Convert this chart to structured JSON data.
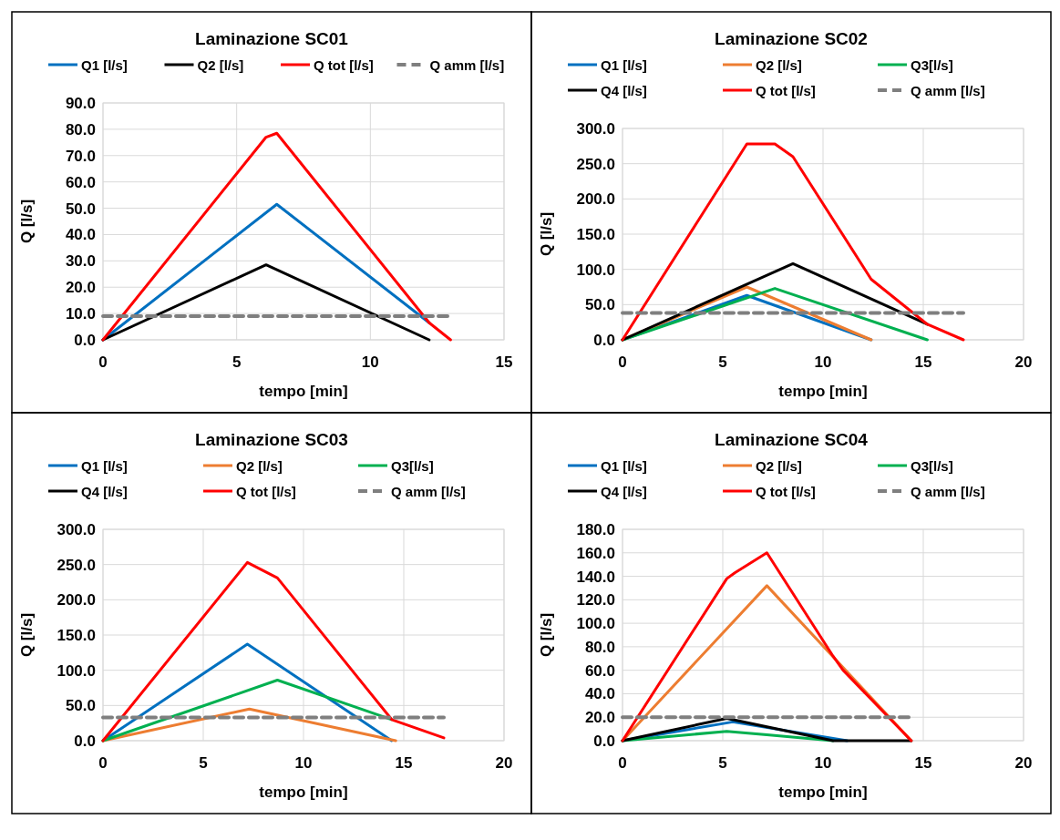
{
  "chart_data": [
    {
      "type": "line",
      "title": "Laminazione SC01",
      "xlabel": "tempo [min]",
      "ylabel": "Q [l/s]",
      "xlim": [
        0,
        15
      ],
      "xticks": [
        0,
        5,
        10,
        15
      ],
      "ylim": [
        0,
        90
      ],
      "yticks": [
        {
          "value": 0,
          "label": "0.0"
        },
        {
          "value": 10,
          "label": "10.0"
        },
        {
          "value": 20,
          "label": "20.0"
        },
        {
          "value": 30,
          "label": "30.0"
        },
        {
          "value": 40,
          "label": "40.0"
        },
        {
          "value": 50,
          "label": "50.0"
        },
        {
          "value": 60,
          "label": "60.0"
        },
        {
          "value": 70,
          "label": "70.0"
        },
        {
          "value": 80,
          "label": "80.0"
        },
        {
          "value": 90,
          "label": "90.0"
        }
      ],
      "grid": true,
      "legend": "top",
      "series": [
        {
          "name": "Q1 [l/s]",
          "color": "#0070c0",
          "x": [
            0,
            6.5,
            12.2
          ],
          "values": [
            0,
            51.5,
            6.5
          ]
        },
        {
          "name": "Q2 [l/s]",
          "color": "#000000",
          "x": [
            0,
            6.1,
            12.2
          ],
          "values": [
            0,
            28.5,
            0
          ]
        },
        {
          "name": "Q tot [l/s]",
          "color": "#ff0000",
          "x": [
            0,
            6.1,
            6.5,
            12.2,
            13
          ],
          "values": [
            0,
            77,
            78.5,
            6.5,
            0
          ]
        },
        {
          "name": "Q amm [l/s]",
          "color": "#7f7f7f",
          "line_style": "dashed",
          "x": [
            0,
            13
          ],
          "values": [
            9,
            9
          ]
        }
      ]
    },
    {
      "type": "line",
      "title": "Laminazione SC02",
      "xlabel": "tempo [min]",
      "ylabel": "Q [l/s]",
      "xlim": [
        0,
        20
      ],
      "xticks": [
        0,
        5,
        10,
        15,
        20
      ],
      "ylim": [
        0,
        300
      ],
      "yticks": [
        {
          "value": 0,
          "label": "0.0"
        },
        {
          "value": 50,
          "label": "50.0"
        },
        {
          "value": 100,
          "label": "100.0"
        },
        {
          "value": 150,
          "label": "150.0"
        },
        {
          "value": 200,
          "label": "200.0"
        },
        {
          "value": 250,
          "label": "250.0"
        },
        {
          "value": 300,
          "label": "300.0"
        }
      ],
      "grid": true,
      "legend": "top",
      "series": [
        {
          "name": "Q1 [l/s]",
          "color": "#0070c0",
          "x": [
            0,
            6.2,
            12.4
          ],
          "values": [
            0,
            63,
            0
          ]
        },
        {
          "name": "Q2 [l/s]",
          "color": "#ed7d31",
          "x": [
            0,
            6.2,
            12.4
          ],
          "values": [
            0,
            75,
            0
          ]
        },
        {
          "name": "Q3[l/s]",
          "color": "#00b050",
          "x": [
            0,
            7.6,
            15.2
          ],
          "values": [
            0,
            73,
            0
          ]
        },
        {
          "name": "Q4 [l/s]",
          "color": "#000000",
          "x": [
            0,
            8.5,
            15.2
          ],
          "values": [
            0,
            108,
            22
          ]
        },
        {
          "name": "Q tot [l/s]",
          "color": "#ff0000",
          "x": [
            0,
            6.2,
            7.6,
            8.5,
            12.4,
            15.2,
            17
          ],
          "values": [
            0,
            278,
            278,
            260,
            86,
            22,
            0
          ]
        },
        {
          "name": "Q amm [l/s]",
          "color": "#7f7f7f",
          "line_style": "dashed",
          "x": [
            0,
            17
          ],
          "values": [
            38,
            38
          ]
        }
      ]
    },
    {
      "type": "line",
      "title": "Laminazione SC03",
      "xlabel": "tempo [min]",
      "ylabel": "Q [l/s]",
      "xlim": [
        0,
        20
      ],
      "xticks": [
        0,
        5,
        10,
        15,
        20
      ],
      "ylim": [
        0,
        300
      ],
      "yticks": [
        {
          "value": 0,
          "label": "0.0"
        },
        {
          "value": 50,
          "label": "50.0"
        },
        {
          "value": 100,
          "label": "100.0"
        },
        {
          "value": 150,
          "label": "150.0"
        },
        {
          "value": 200,
          "label": "200.0"
        },
        {
          "value": 250,
          "label": "250.0"
        },
        {
          "value": 300,
          "label": "300.0"
        }
      ],
      "grid": true,
      "legend": "top",
      "series": [
        {
          "name": "Q1 [l/s]",
          "color": "#0070c0",
          "x": [
            0,
            7.2,
            14.4
          ],
          "values": [
            0,
            137,
            0
          ]
        },
        {
          "name": "Q2 [l/s]",
          "color": "#ed7d31",
          "x": [
            0,
            7.3,
            14.6
          ],
          "values": [
            0,
            45,
            0
          ]
        },
        {
          "name": "Q3[l/s]",
          "color": "#00b050",
          "x": [
            0,
            8.7,
            14.4
          ],
          "values": [
            0,
            86,
            30
          ]
        },
        {
          "name": "Q4 [l/s]",
          "color": "#000000"
        },
        {
          "name": "Q tot [l/s]",
          "color": "#ff0000",
          "x": [
            0,
            7.2,
            8.7,
            14.4,
            17
          ],
          "values": [
            0,
            253,
            231,
            30,
            4
          ]
        },
        {
          "name": "Q amm [l/s]",
          "color": "#7f7f7f",
          "line_style": "dashed",
          "x": [
            0,
            17
          ],
          "values": [
            33,
            33
          ]
        }
      ]
    },
    {
      "type": "line",
      "title": "Laminazione SC04",
      "xlabel": "tempo [min]",
      "ylabel": "Q [l/s]",
      "xlim": [
        0,
        20
      ],
      "xticks": [
        0,
        5,
        10,
        15,
        20
      ],
      "ylim": [
        0,
        180
      ],
      "yticks": [
        {
          "value": 0,
          "label": "0.0"
        },
        {
          "value": 20,
          "label": "20.0"
        },
        {
          "value": 40,
          "label": "40.0"
        },
        {
          "value": 60,
          "label": "60.0"
        },
        {
          "value": 80,
          "label": "80.0"
        },
        {
          "value": 100,
          "label": "100.0"
        },
        {
          "value": 120,
          "label": "120.0"
        },
        {
          "value": 140,
          "label": "140.0"
        },
        {
          "value": 160,
          "label": "160.0"
        },
        {
          "value": 180,
          "label": "180.0"
        }
      ],
      "grid": true,
      "legend": "top",
      "series": [
        {
          "name": "Q1 [l/s]",
          "color": "#0070c0",
          "x": [
            0,
            5.5,
            11.2
          ],
          "values": [
            0,
            16,
            0
          ]
        },
        {
          "name": "Q2 [l/s]",
          "color": "#ed7d31",
          "x": [
            0,
            7.2,
            14.4
          ],
          "values": [
            0,
            132,
            0
          ]
        },
        {
          "name": "Q3[l/s]",
          "color": "#00b050",
          "x": [
            0,
            5.2,
            7.2,
            10.5
          ],
          "values": [
            0,
            8,
            5,
            0
          ]
        },
        {
          "name": "Q4 [l/s]",
          "color": "#000000",
          "x": [
            0,
            5.2,
            10.5,
            14.4
          ],
          "values": [
            0,
            19,
            0,
            0
          ]
        },
        {
          "name": "Q tot [l/s]",
          "color": "#ff0000",
          "x": [
            0,
            5.2,
            5.6,
            7.2,
            10.5,
            11,
            14.4
          ],
          "values": [
            0,
            138,
            143,
            160,
            72,
            60,
            0
          ]
        },
        {
          "name": "Q amm [l/s]",
          "color": "#7f7f7f",
          "line_style": "dashed",
          "x": [
            0,
            14.4
          ],
          "values": [
            20,
            20
          ]
        }
      ]
    }
  ]
}
